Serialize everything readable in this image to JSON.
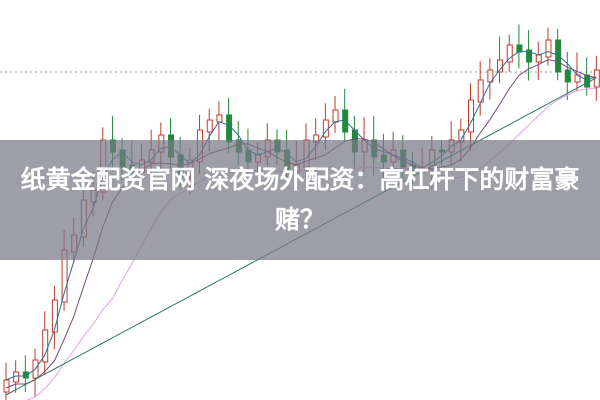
{
  "article": {
    "title": "纸黄金配资官网 深夜场外配资：高杠杆下的财富豪赌？"
  },
  "background": {
    "type": "candlestick chart with moving averages",
    "colors": {
      "up": "#c0392b",
      "down": "#1e8a3a",
      "ma_short": "#2f6f8f",
      "ma_mid": "#7a4a7a",
      "ma_long": "#e6a0e6",
      "ma_slow": "#2e7d5b",
      "gridline": "#9a9aa0"
    }
  }
}
